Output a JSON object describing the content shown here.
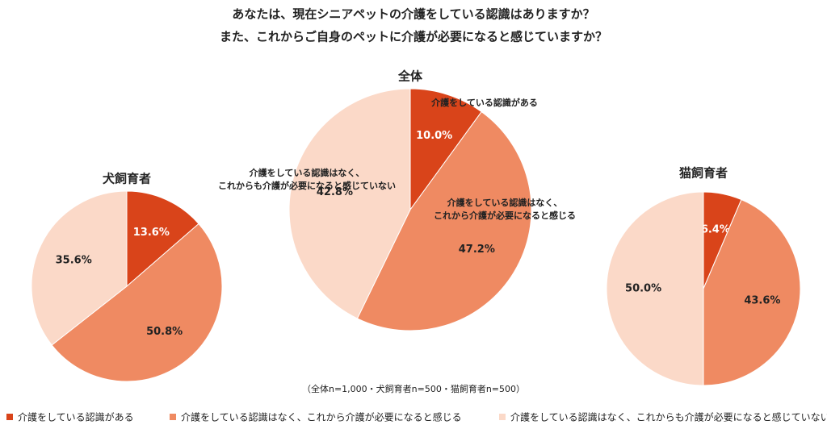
{
  "title": [
    "あなたは、現在シニアペットの介護をしている認識はありますか？",
    "また、これからご自身のペットに介護が必要になると感じていますか？"
  ],
  "note": "（全体n=1,000・犬飼育者n=500・猫飼育者n=500）",
  "chart_data": [
    {
      "type": "pie",
      "title": "犬飼育者",
      "values": [
        13.6,
        50.8,
        35.6
      ],
      "value_labels": [
        "13.6%",
        "50.8%",
        "35.6%"
      ],
      "colors": [
        "#d9441a",
        "#ef8a62",
        "#fbd9c8"
      ]
    },
    {
      "type": "pie",
      "title": "全体",
      "categories": [
        "介護をしている認識がある",
        "介護をしている認識はなく、これから介護が必要になると感じる",
        "介護をしている認識はなく、これからも介護が必要になると感じていない"
      ],
      "annotations": [
        [
          "介護をしている認識がある"
        ],
        [
          "介護をしている認識はなく、",
          "これから介護が必要になると感じる"
        ],
        [
          "介護をしている認識はなく、",
          "これからも介護が必要になると感じていない"
        ]
      ],
      "values": [
        10,
        47.2,
        42.8
      ],
      "value_labels": [
        "10.0%",
        "47.2%",
        "42.8%"
      ],
      "colors": [
        "#d9441a",
        "#ef8a62",
        "#fbd9c8"
      ]
    },
    {
      "type": "pie",
      "title": "猫飼育者",
      "values": [
        6.4,
        43.6,
        50
      ],
      "value_labels": [
        "6.4%",
        "43.6%",
        "50.0%"
      ],
      "colors": [
        "#d9441a",
        "#ef8a62",
        "#fbd9c8"
      ]
    }
  ]
}
